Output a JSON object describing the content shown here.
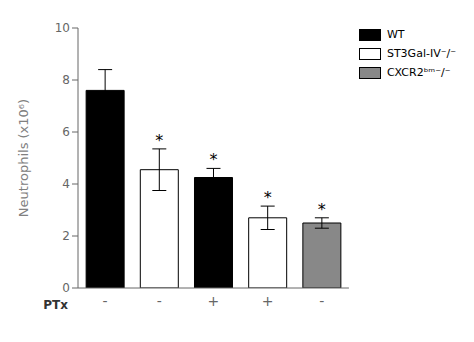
{
  "chart_data": {
    "type": "bar",
    "ylabel": "Neutrophils (x10⁶)",
    "xlabel": "PTx",
    "categories": [
      "-",
      "-",
      "+",
      "+",
      "-"
    ],
    "series": [
      {
        "name": "WT",
        "color": "#000000",
        "values": [
          7.6,
          null,
          4.25,
          null,
          null
        ],
        "errors": [
          0.8,
          null,
          0.35,
          null,
          null
        ]
      },
      {
        "name": "ST3Gal-IV⁻/⁻",
        "color": "#ffffff",
        "values": [
          null,
          4.55,
          null,
          2.7,
          null
        ],
        "errors": [
          null,
          0.8,
          null,
          0.45,
          null
        ]
      },
      {
        "name": "CXCR2ᵇᵐ⁻/⁻",
        "color": "#888888",
        "values": [
          null,
          null,
          null,
          null,
          2.5
        ],
        "errors": [
          null,
          null,
          null,
          null,
          0.2
        ]
      }
    ],
    "annotations": [
      null,
      "*",
      "*",
      "*",
      "*"
    ],
    "ylim": [
      0,
      10
    ],
    "yticks": [
      0,
      2,
      4,
      6,
      8,
      10
    ],
    "grid": false,
    "legend": "upper right"
  }
}
